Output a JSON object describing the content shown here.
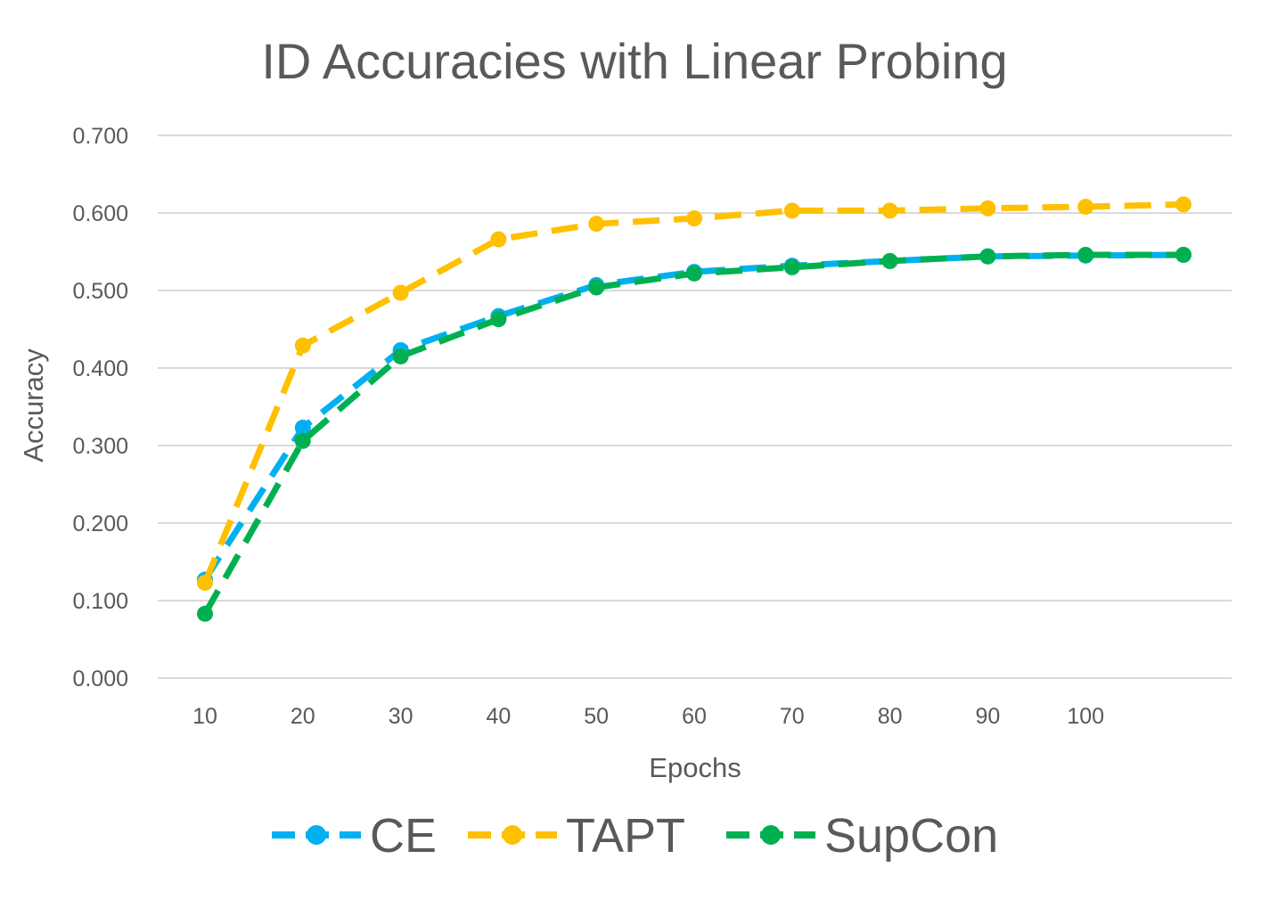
{
  "chart_data": {
    "type": "line",
    "title": "ID Accuracies with Linear Probing",
    "xlabel": "Epochs",
    "ylabel": "Accuracy",
    "x_tick_labels": [
      "10",
      "20",
      "30",
      "40",
      "50",
      "60",
      "70",
      "80",
      "90",
      "100"
    ],
    "y_tick_labels": [
      "0.000",
      "0.100",
      "0.200",
      "0.300",
      "0.400",
      "0.500",
      "0.600",
      "0.700"
    ],
    "ylim": [
      0,
      0.7
    ],
    "grid": true,
    "legend_position": "bottom",
    "series": [
      {
        "name": "CE",
        "color": "#00b0f0",
        "x": [
          10,
          20,
          30,
          40,
          50,
          60,
          70,
          80,
          90,
          100,
          110
        ],
        "values": [
          0.127,
          0.323,
          0.423,
          0.467,
          0.507,
          0.524,
          0.532,
          0.538,
          0.544,
          0.545,
          0.546
        ]
      },
      {
        "name": "TAPT",
        "color": "#ffc000",
        "x": [
          10,
          20,
          30,
          40,
          50,
          60,
          70,
          80,
          90,
          100,
          110
        ],
        "values": [
          0.123,
          0.429,
          0.497,
          0.566,
          0.586,
          0.593,
          0.603,
          0.603,
          0.606,
          0.608,
          0.611
        ]
      },
      {
        "name": "SupCon",
        "color": "#00b050",
        "x": [
          10,
          20,
          30,
          40,
          50,
          60,
          70,
          80,
          90,
          100,
          110
        ],
        "values": [
          0.083,
          0.306,
          0.415,
          0.463,
          0.504,
          0.522,
          0.53,
          0.538,
          0.544,
          0.546,
          0.546
        ]
      }
    ]
  }
}
